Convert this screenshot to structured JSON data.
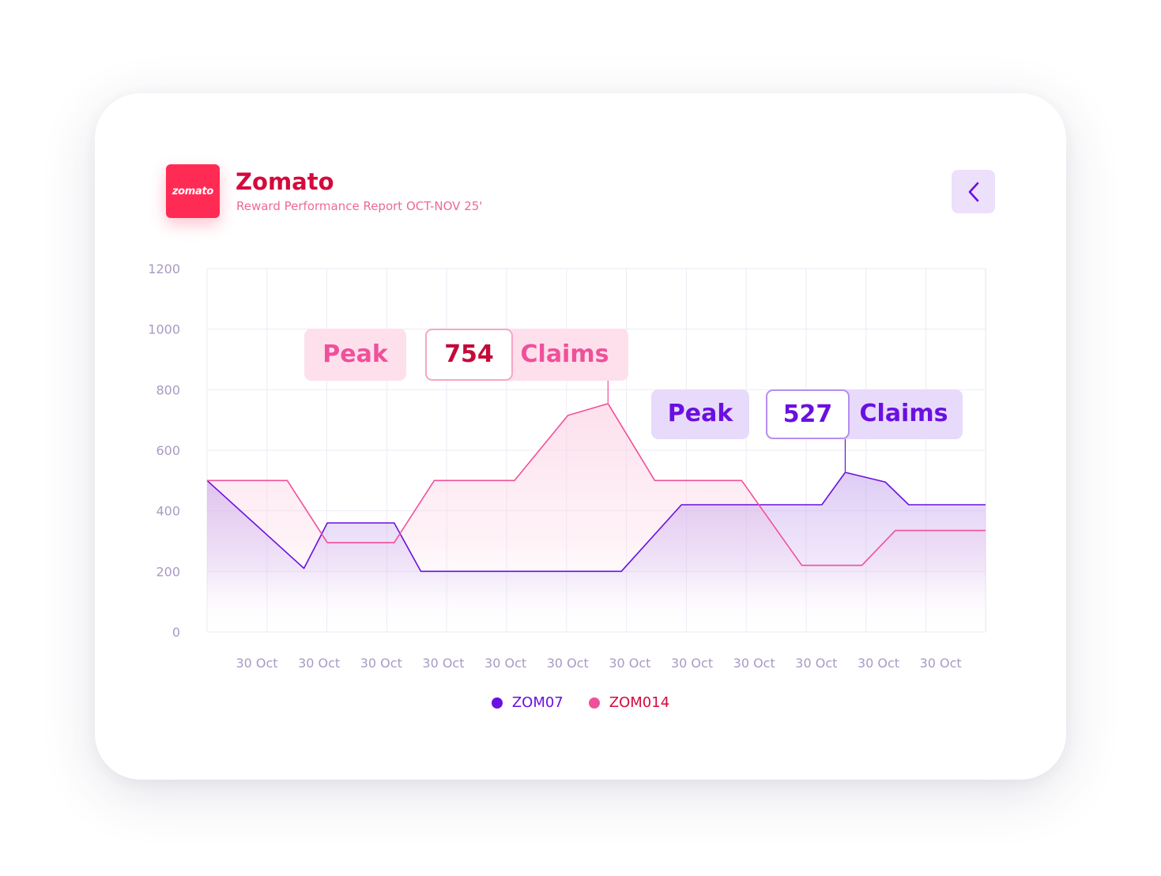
{
  "brand": {
    "logo_text": "zomato",
    "title": "Zomato",
    "subtitle": "Reward Performance Report OCT-NOV 25'"
  },
  "colors": {
    "zom07": "#6a10e0",
    "zom014": "#f0509a",
    "brand_red": "#ff2b55",
    "title_red": "#d40a3c"
  },
  "icons": {
    "back": "chevron-left-icon"
  },
  "callouts": {
    "zom014": {
      "peak_label": "Peak",
      "value": "754",
      "unit": "Claims"
    },
    "zom07": {
      "peak_label": "Peak",
      "value": "527",
      "unit": "Claims"
    }
  },
  "legend": {
    "zom07": "ZOM07",
    "zom014": "ZOM014"
  },
  "chart_data": {
    "type": "area",
    "title": "",
    "xlabel": "",
    "ylabel": "",
    "ylim": [
      0,
      1200
    ],
    "y_ticks": [
      0,
      200,
      400,
      600,
      800,
      1000,
      1200
    ],
    "categories": [
      "30 Oct",
      "30 Oct",
      "30 Oct",
      "30 Oct",
      "30 Oct",
      "30 Oct",
      "30 Oct",
      "30 Oct",
      "30 Oct",
      "30 Oct",
      "30 Oct",
      "30 Oct"
    ],
    "grid": true,
    "legend_position": "bottom-center",
    "series": [
      {
        "name": "ZOM07",
        "color": "#6a10e0",
        "x": [
          0,
          1.45,
          1.8,
          2.8,
          3.2,
          6.2,
          7.1,
          8.7,
          9.2,
          9.55,
          10.15,
          10.5,
          11.65
        ],
        "y": [
          500,
          210,
          360,
          360,
          200,
          200,
          420,
          420,
          420,
          527,
          495,
          420,
          420
        ]
      },
      {
        "name": "ZOM014",
        "color": "#f0509a",
        "x": [
          0,
          1.2,
          1.8,
          2.8,
          3.4,
          4.6,
          5.4,
          6.0,
          6.7,
          8.0,
          8.9,
          9.8,
          10.3,
          11.65
        ],
        "y": [
          500,
          500,
          295,
          295,
          500,
          500,
          715,
          754,
          500,
          500,
          220,
          220,
          335,
          335
        ]
      }
    ]
  }
}
